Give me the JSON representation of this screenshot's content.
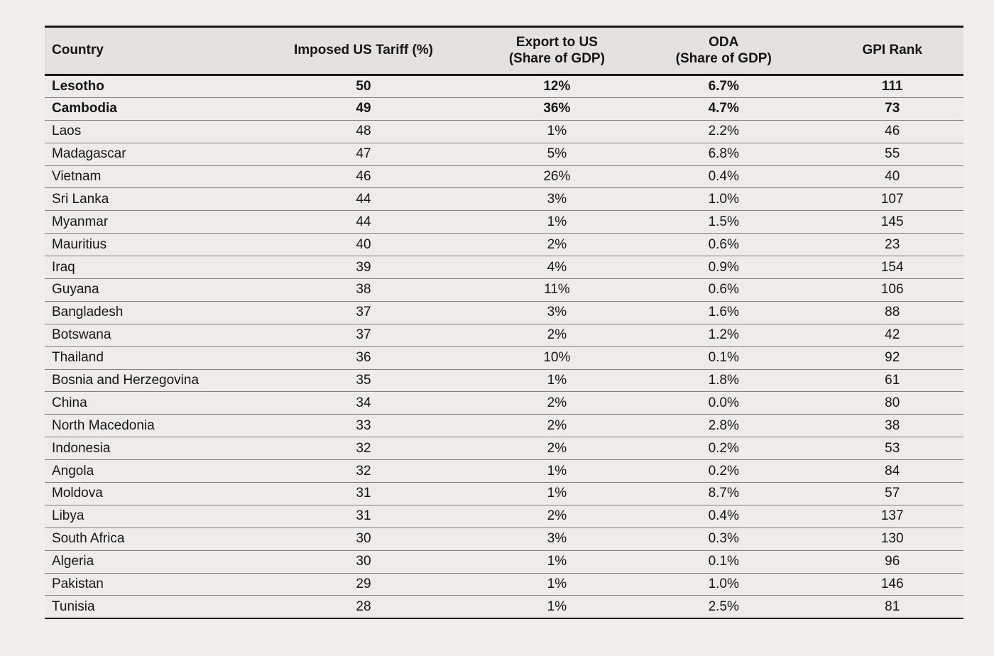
{
  "colors": {
    "page_background": "#f0efee",
    "header_background": "#e3e2e0",
    "row_background": "#edeceb",
    "heavy_rule": "#1b1918",
    "row_rule": "#827f7e",
    "text": "#161514"
  },
  "chart_data": {
    "type": "table",
    "columns": [
      {
        "id": "country",
        "label": "Country"
      },
      {
        "id": "tariff",
        "label": "Imposed US Tariff (%)"
      },
      {
        "id": "export",
        "label": "Export to US\n(Share of GDP)"
      },
      {
        "id": "oda",
        "label": "ODA\n(Share of GDP)"
      },
      {
        "id": "gpi",
        "label": "GPI Rank"
      }
    ],
    "rows": [
      {
        "country": "Lesotho",
        "tariff": "50",
        "export": "12%",
        "oda": "6.7%",
        "gpi": "111",
        "bold": true
      },
      {
        "country": "Cambodia",
        "tariff": "49",
        "export": "36%",
        "oda": "4.7%",
        "gpi": "73",
        "bold": true
      },
      {
        "country": "Laos",
        "tariff": "48",
        "export": "1%",
        "oda": "2.2%",
        "gpi": "46",
        "bold": false
      },
      {
        "country": "Madagascar",
        "tariff": "47",
        "export": "5%",
        "oda": "6.8%",
        "gpi": "55",
        "bold": false
      },
      {
        "country": "Vietnam",
        "tariff": "46",
        "export": "26%",
        "oda": "0.4%",
        "gpi": "40",
        "bold": false
      },
      {
        "country": "Sri Lanka",
        "tariff": "44",
        "export": "3%",
        "oda": "1.0%",
        "gpi": "107",
        "bold": false
      },
      {
        "country": "Myanmar",
        "tariff": "44",
        "export": "1%",
        "oda": "1.5%",
        "gpi": "145",
        "bold": false
      },
      {
        "country": "Mauritius",
        "tariff": "40",
        "export": "2%",
        "oda": "0.6%",
        "gpi": "23",
        "bold": false
      },
      {
        "country": "Iraq",
        "tariff": "39",
        "export": "4%",
        "oda": "0.9%",
        "gpi": "154",
        "bold": false
      },
      {
        "country": "Guyana",
        "tariff": "38",
        "export": "11%",
        "oda": "0.6%",
        "gpi": "106",
        "bold": false
      },
      {
        "country": "Bangladesh",
        "tariff": "37",
        "export": "3%",
        "oda": "1.6%",
        "gpi": "88",
        "bold": false
      },
      {
        "country": "Botswana",
        "tariff": "37",
        "export": "2%",
        "oda": "1.2%",
        "gpi": "42",
        "bold": false
      },
      {
        "country": "Thailand",
        "tariff": "36",
        "export": "10%",
        "oda": "0.1%",
        "gpi": "92",
        "bold": false
      },
      {
        "country": "Bosnia and Herzegovina",
        "tariff": "35",
        "export": "1%",
        "oda": "1.8%",
        "gpi": "61",
        "bold": false
      },
      {
        "country": "China",
        "tariff": "34",
        "export": "2%",
        "oda": "0.0%",
        "gpi": "80",
        "bold": false
      },
      {
        "country": "North Macedonia",
        "tariff": "33",
        "export": "2%",
        "oda": "2.8%",
        "gpi": "38",
        "bold": false
      },
      {
        "country": "Indonesia",
        "tariff": "32",
        "export": "2%",
        "oda": "0.2%",
        "gpi": "53",
        "bold": false
      },
      {
        "country": "Angola",
        "tariff": "32",
        "export": "1%",
        "oda": "0.2%",
        "gpi": "84",
        "bold": false
      },
      {
        "country": "Moldova",
        "tariff": "31",
        "export": "1%",
        "oda": "8.7%",
        "gpi": "57",
        "bold": false
      },
      {
        "country": "Libya",
        "tariff": "31",
        "export": "2%",
        "oda": "0.4%",
        "gpi": "137",
        "bold": false
      },
      {
        "country": "South Africa",
        "tariff": "30",
        "export": "3%",
        "oda": "0.3%",
        "gpi": "130",
        "bold": false
      },
      {
        "country": "Algeria",
        "tariff": "30",
        "export": "1%",
        "oda": "0.1%",
        "gpi": "96",
        "bold": false
      },
      {
        "country": "Pakistan",
        "tariff": "29",
        "export": "1%",
        "oda": "1.0%",
        "gpi": "146",
        "bold": false
      },
      {
        "country": "Tunisia",
        "tariff": "28",
        "export": "1%",
        "oda": "2.5%",
        "gpi": "81",
        "bold": false
      }
    ]
  }
}
